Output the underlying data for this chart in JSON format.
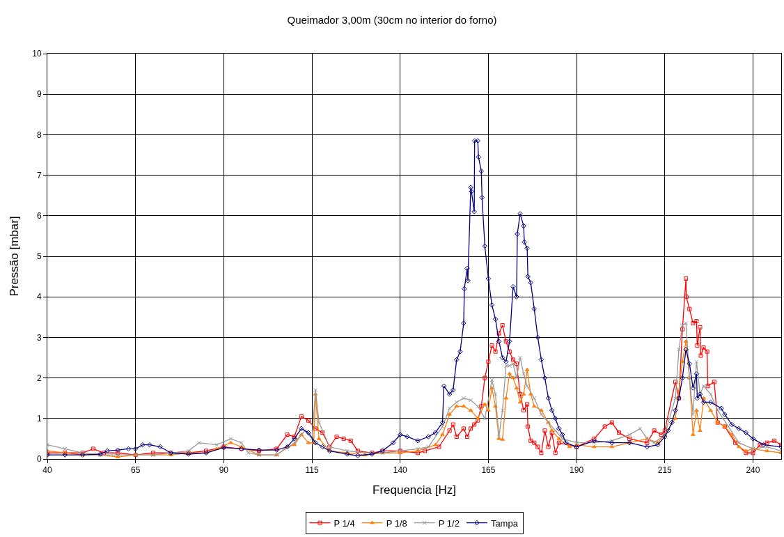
{
  "chart_data": {
    "type": "line",
    "title": "Queimador 3,00m (30cm no interior do forno)",
    "xlabel": "Frequencia [Hz]",
    "ylabel": "Pressão [mbar]",
    "xlim": [
      40,
      248
    ],
    "xticks": [
      40,
      65,
      90,
      115,
      140,
      165,
      190,
      215,
      240
    ],
    "ylim": [
      0,
      10
    ],
    "yticks": [
      0,
      1,
      2,
      3,
      4,
      5,
      6,
      7,
      8,
      9,
      10
    ],
    "grid": true,
    "legend": "bottom",
    "line_style": "solid",
    "series": [
      {
        "name": "P 1/4",
        "color": "#ff0000",
        "marker": "square",
        "x": [
          40,
          45,
          50,
          53,
          56,
          60,
          65,
          70,
          75,
          80,
          85,
          90,
          95,
          100,
          105,
          108,
          110,
          112,
          114,
          116,
          118,
          120,
          122,
          124,
          126,
          128,
          132,
          135,
          140,
          145,
          147,
          151,
          154,
          155,
          156,
          158,
          159,
          160,
          161,
          162,
          163,
          164,
          165,
          166,
          167,
          168,
          169,
          170,
          171,
          172,
          173,
          174,
          175,
          176,
          176.2,
          177,
          178,
          179,
          180,
          181,
          182,
          183,
          184,
          185,
          190,
          195,
          198,
          200,
          202,
          205,
          210,
          212,
          214,
          215,
          218,
          219,
          220,
          221,
          221.1,
          222,
          223,
          224,
          224.2,
          225,
          225.2,
          226,
          227,
          227.2,
          229,
          230,
          232,
          235,
          238,
          240,
          242,
          244,
          246,
          248
        ],
        "values": [
          0.15,
          0.15,
          0.15,
          0.25,
          0.15,
          0.15,
          0.1,
          0.15,
          0.15,
          0.15,
          0.2,
          0.3,
          0.25,
          0.2,
          0.25,
          0.6,
          0.55,
          1.05,
          0.95,
          0.75,
          0.65,
          0.3,
          0.55,
          0.5,
          0.45,
          0.2,
          0.15,
          0.2,
          0.2,
          0.15,
          0.2,
          0.3,
          0.7,
          0.85,
          0.55,
          0.75,
          0.55,
          0.75,
          0.85,
          0.95,
          1.3,
          2.0,
          2.4,
          2.8,
          2.65,
          3.1,
          3.3,
          2.9,
          2.65,
          2.45,
          2.35,
          1.6,
          1.2,
          1.35,
          0.8,
          0.45,
          0.4,
          0.3,
          0.15,
          0.7,
          0.3,
          0.65,
          0.15,
          0.4,
          0.3,
          0.5,
          0.8,
          0.9,
          0.65,
          0.5,
          0.4,
          0.7,
          0.6,
          0.7,
          1.9,
          1.5,
          3.2,
          4.45,
          4.0,
          3.7,
          3.35,
          3.4,
          2.8,
          3.25,
          2.55,
          2.75,
          2.65,
          1.8,
          1.9,
          0.9,
          0.8,
          0.4,
          0.15,
          0.15,
          0.35,
          0.4,
          0.45,
          0.35
        ]
      },
      {
        "name": "P 1/8",
        "color": "#ff7f0e",
        "marker": "triangle",
        "x": [
          40,
          45,
          50,
          55,
          60,
          65,
          70,
          75,
          80,
          85,
          88,
          92,
          95,
          100,
          105,
          108,
          110,
          112,
          114,
          115.5,
          116,
          117,
          120,
          125,
          130,
          135,
          140,
          145,
          150,
          152,
          154,
          156,
          158,
          160,
          162,
          164,
          165,
          166,
          167,
          168,
          169,
          170,
          171,
          172,
          173,
          174,
          175,
          176,
          177,
          178,
          180,
          182,
          183,
          185,
          188,
          190,
          195,
          200,
          205,
          210,
          213,
          215,
          218,
          220,
          221,
          222,
          223,
          224,
          225,
          226,
          228,
          230,
          232,
          234,
          236,
          238,
          240,
          244,
          248
        ],
        "values": [
          0.2,
          0.15,
          0.1,
          0.1,
          0.05,
          0.1,
          0.1,
          0.1,
          0.15,
          0.15,
          0.25,
          0.4,
          0.3,
          0.1,
          0.1,
          0.3,
          0.35,
          0.6,
          0.4,
          0.4,
          1.6,
          0.5,
          0.2,
          0.15,
          0.1,
          0.15,
          0.15,
          0.2,
          0.35,
          0.6,
          1.1,
          1.3,
          1.3,
          1.2,
          1.0,
          1.35,
          1.2,
          1.75,
          1.3,
          0.5,
          0.48,
          1.5,
          2.1,
          2.0,
          1.75,
          1.4,
          1.6,
          2.2,
          1.6,
          1.3,
          1.2,
          0.9,
          0.7,
          0.5,
          0.3,
          0.35,
          0.3,
          0.3,
          0.4,
          0.5,
          0.4,
          0.6,
          1.0,
          2.4,
          2.9,
          2.0,
          0.6,
          1.2,
          0.7,
          1.5,
          1.2,
          0.9,
          0.8,
          0.6,
          0.3,
          0.2,
          0.25,
          0.2,
          0.15
        ]
      },
      {
        "name": "P 1/2",
        "color": "#999999",
        "marker": "cross",
        "x": [
          40,
          45,
          50,
          55,
          60,
          65,
          70,
          75,
          80,
          83,
          88,
          92,
          95,
          97,
          100,
          105,
          110,
          113,
          115,
          116,
          117,
          120,
          125,
          130,
          135,
          140,
          145,
          148,
          152,
          154,
          156,
          158,
          160,
          162,
          164,
          166,
          167,
          168,
          169,
          170,
          171,
          172,
          173,
          174,
          175,
          176,
          178,
          180,
          182,
          184,
          186,
          190,
          195,
          200,
          205,
          208,
          210,
          212,
          215,
          218,
          219,
          220,
          221,
          222,
          223,
          224,
          225,
          226,
          228,
          230,
          233,
          236,
          240,
          244,
          248
        ],
        "values": [
          0.35,
          0.25,
          0.15,
          0.1,
          0.1,
          0.1,
          0.1,
          0.15,
          0.2,
          0.4,
          0.35,
          0.5,
          0.4,
          0.15,
          0.1,
          0.1,
          0.4,
          0.7,
          0.5,
          1.7,
          0.9,
          0.3,
          0.2,
          0.15,
          0.15,
          0.2,
          0.25,
          0.3,
          0.8,
          1.25,
          1.4,
          1.5,
          1.45,
          1.3,
          1.0,
          1.95,
          1.6,
          0.55,
          1.2,
          2.3,
          2.3,
          2.35,
          2.0,
          2.5,
          2.1,
          1.8,
          1.5,
          1.1,
          0.9,
          0.7,
          0.5,
          0.4,
          0.4,
          0.45,
          0.6,
          0.75,
          0.5,
          0.4,
          0.6,
          1.5,
          2.7,
          3.3,
          3.35,
          2.0,
          1.1,
          2.4,
          1.6,
          1.8,
          1.6,
          1.2,
          0.8,
          0.4,
          0.25,
          0.3,
          0.2
        ]
      },
      {
        "name": "Tampa",
        "color": "#000080",
        "marker": "diamond",
        "x": [
          40,
          45,
          50,
          55,
          57,
          60,
          63,
          65,
          67,
          69,
          72,
          75,
          80,
          85,
          90,
          95,
          100,
          105,
          108,
          110,
          112,
          114,
          116,
          118,
          120,
          125,
          128,
          132,
          135,
          138,
          140,
          142,
          145,
          148,
          150,
          152,
          152.4,
          154,
          155,
          156,
          157,
          158,
          158.2,
          159,
          159.2,
          160,
          160.2,
          161,
          161.1,
          162,
          162.2,
          163,
          163.2,
          164,
          165,
          166,
          167,
          168,
          169,
          170,
          171,
          172,
          173,
          173.2,
          174,
          175,
          175.2,
          176,
          176.2,
          177,
          178,
          179,
          180,
          181,
          182,
          183,
          184,
          185,
          186,
          187,
          190,
          195,
          200,
          205,
          210,
          213,
          215,
          216,
          217,
          218,
          219,
          220,
          221,
          222,
          223,
          224,
          224.2,
          225,
          226,
          228,
          231,
          232,
          234,
          236,
          238,
          240,
          243,
          248
        ],
        "values": [
          0.1,
          0.1,
          0.1,
          0.12,
          0.2,
          0.22,
          0.25,
          0.25,
          0.35,
          0.35,
          0.3,
          0.15,
          0.12,
          0.15,
          0.28,
          0.25,
          0.22,
          0.22,
          0.3,
          0.5,
          0.75,
          0.65,
          0.4,
          0.3,
          0.2,
          0.12,
          0.08,
          0.12,
          0.2,
          0.4,
          0.6,
          0.55,
          0.45,
          0.55,
          0.65,
          0.9,
          1.8,
          1.6,
          1.7,
          2.45,
          2.65,
          3.35,
          4.2,
          4.7,
          4.4,
          6.7,
          6.6,
          6.1,
          7.85,
          7.85,
          7.45,
          7.1,
          6.45,
          5.25,
          4.45,
          3.8,
          3.45,
          2.9,
          2.5,
          2.4,
          2.9,
          4.25,
          4.0,
          5.55,
          6.05,
          5.75,
          5.35,
          5.2,
          4.5,
          4.35,
          3.7,
          3.0,
          2.45,
          2.0,
          1.5,
          1.2,
          1.0,
          0.75,
          0.6,
          0.4,
          0.3,
          0.45,
          0.4,
          0.4,
          0.3,
          0.35,
          0.55,
          0.7,
          0.9,
          1.2,
          1.5,
          2.0,
          2.7,
          2.35,
          1.75,
          2.1,
          1.5,
          1.6,
          1.4,
          1.4,
          1.25,
          1.1,
          0.85,
          0.75,
          0.65,
          0.5,
          0.35,
          0.3
        ]
      }
    ]
  }
}
